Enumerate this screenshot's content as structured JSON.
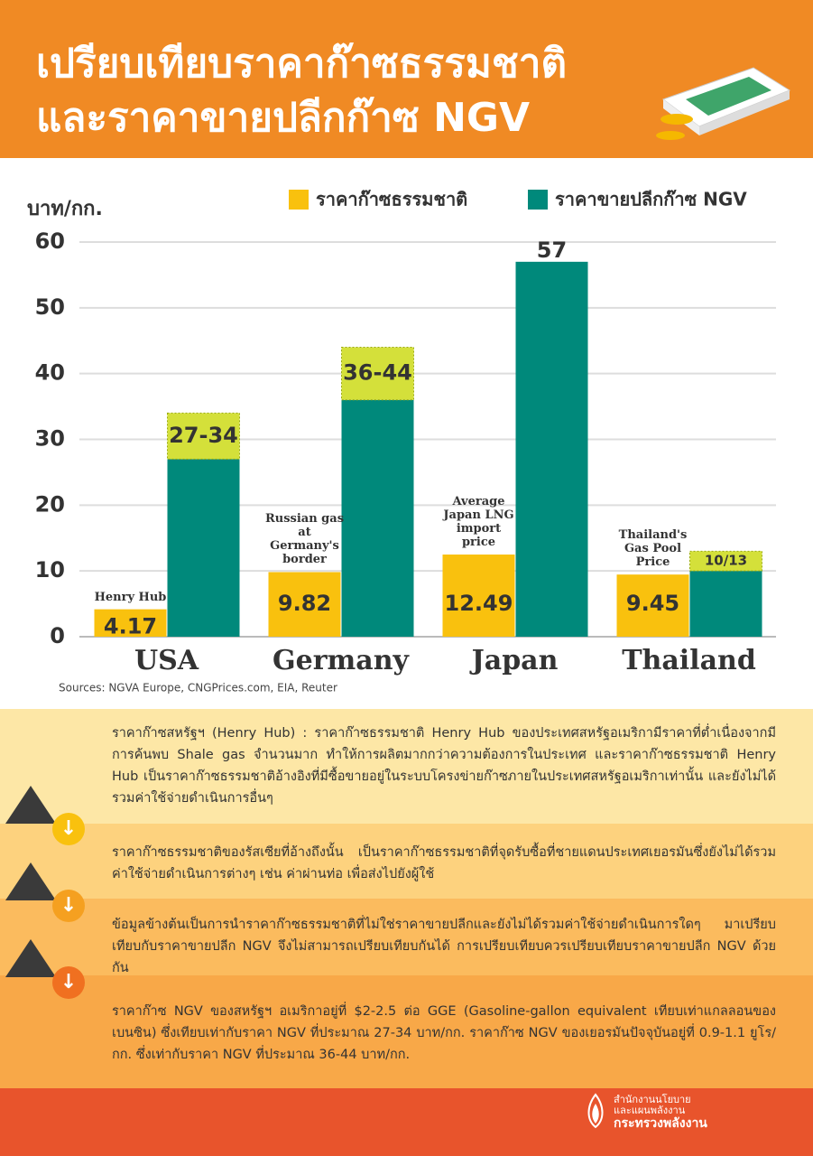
{
  "header": {
    "title_lines": [
      "เปรียบเทียบราคาก๊าซธรรมชาติ",
      "และราคาขายปลีกก๊าซ NGV"
    ]
  },
  "chart_data": {
    "type": "bar",
    "ylabel": "บาท/กก.",
    "ylim": [
      0,
      60
    ],
    "yticks": [
      0,
      10,
      20,
      30,
      40,
      50,
      60
    ],
    "grid": true,
    "categories": [
      "USA",
      "Germany",
      "Japan",
      "Thailand"
    ],
    "annotations": [
      "Henry Hub",
      "Russian gas at Germany's border",
      "Average Japan LNG import price",
      "Thailand's Gas Pool Price"
    ],
    "series": [
      {
        "name": "ราคาก๊าซธรรมชาติ",
        "color": "#f9c10e",
        "values": [
          4.17,
          9.82,
          12.49,
          9.45
        ]
      },
      {
        "name": "ราคาขายปลีกก๊าซ NGV",
        "color": "#00897b",
        "range_color": "#d4e03a",
        "low": [
          27,
          36,
          57,
          10
        ],
        "high": [
          34,
          44,
          57,
          13
        ],
        "value_labels": [
          "27-34",
          "36-44",
          "57",
          "10/13"
        ]
      }
    ],
    "source": "Sources: NGVA Europe, CNGPrices.com, EIA, Reuter"
  },
  "notes": [
    "ราคาก๊าซสหรัฐฯ (Henry Hub) : ราคาก๊าซธรรมชาติ Henry Hub ของประเทศสหรัฐอเมริกามีราคาที่ต่ำเนื่องจากมีการค้นพบ Shale gas จำนวนมาก ทำให้การผลิตมากกว่าความต้องการในประเทศ และราคาก๊าซธรรมชาติ Henry Hub เป็นราคาก๊าซธรรมชาติอ้างอิงที่มีซื้อขายอยู่ในระบบโครงข่ายก๊าซภายในประเทศสหรัฐอเมริกาเท่านั้น และยังไม่ได้รวมค่าใช้จ่ายดำเนินการอื่นๆ",
    "ราคาก๊าซธรรมชาติของรัสเซียที่อ้างถึงนั้น เป็นราคาก๊าซธรรมชาติที่จุดรับซื้อที่ชายแดนประเทศเยอรมันซึ่งยังไม่ได้รวมค่าใช้จ่ายดำเนินการต่างๆ เช่น ค่าผ่านท่อ เพื่อส่งไปยังผู้ใช้",
    "ข้อมูลข้างต้นเป็นการนำราคาก๊าซธรรมชาติที่ไม่ใช่ราคาขายปลีกและยังไม่ได้รวมค่าใช้จ่ายดำเนินการใดๆ มาเปรียบเทียบกับราคาขายปลีก NGV จึงไม่สามารถเปรียบเทียบกันได้ การเปรียบเทียบควรเปรียบเทียบราคาขายปลีก NGV ด้วยกัน",
    "ราคาก๊าซ NGV ของสหรัฐฯ อเมริกาอยู่ที่ $2-2.5 ต่อ GGE (Gasoline-gallon equivalent เทียบเท่าแกลลอนของเบนซิน) ซึ่งเทียบเท่ากับราคา NGV ที่ประมาณ 27-34 บาท/กก. ราคาก๊าซ NGV ของเยอรมันปัจจุบันอยู่ที่ 0.9-1.1 ยูโร/กก. ซึ่งเท่ากับราคา NGV ที่ประมาณ 36-44 บาท/กก."
  ],
  "footer": {
    "org_lines": [
      "สำนักงานนโยบาย",
      "และแผนพลังงาน",
      "กระทรวงพลังงาน"
    ]
  }
}
